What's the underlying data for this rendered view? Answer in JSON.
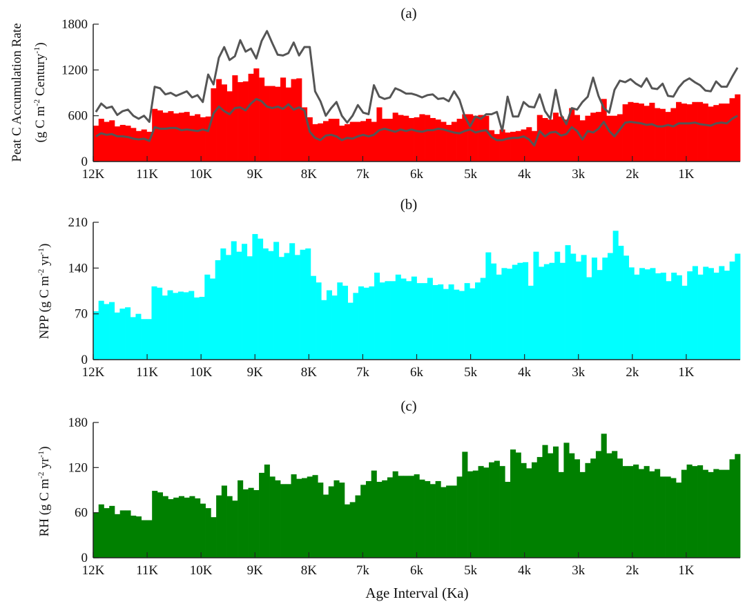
{
  "chart_data": [
    {
      "type": "bar",
      "title": "(a)",
      "ylabel_main": "Peat C Accumulation Rate",
      "ylabel_unit_parts": [
        "(g C m",
        "-2",
        " Century",
        "-1",
        ")"
      ],
      "xlabel": "",
      "xlim": [
        12000,
        0
      ],
      "ylim": [
        0,
        1800
      ],
      "yticks": [
        "0",
        "600",
        "1200",
        "1800"
      ],
      "xticks": [
        "12K",
        "11K",
        "10K",
        "9K",
        "8K",
        "7k",
        "6k",
        "5k",
        "4k",
        "3k",
        "2k",
        "1K"
      ],
      "bar_color": "#ff0000",
      "line_color": "#555555",
      "series": [
        {
          "name": "",
          "kind": "bar",
          "values": [
            470,
            560,
            520,
            540,
            460,
            480,
            470,
            440,
            400,
            420,
            390,
            690,
            670,
            640,
            660,
            630,
            640,
            650,
            600,
            620,
            580,
            590,
            960,
            1080,
            1010,
            920,
            1130,
            1040,
            1050,
            1150,
            1220,
            1100,
            990,
            990,
            980,
            1100,
            970,
            1080,
            1090,
            710,
            580,
            490,
            500,
            530,
            560,
            560,
            470,
            490,
            520,
            520,
            530,
            560,
            520,
            710,
            560,
            560,
            640,
            610,
            600,
            570,
            580,
            620,
            610,
            570,
            550,
            520,
            480,
            520,
            560,
            620,
            620,
            600,
            610,
            600,
            410,
            360,
            420,
            380,
            390,
            400,
            420,
            450,
            400,
            610,
            570,
            550,
            640,
            590,
            550,
            700,
            610,
            540,
            600,
            640,
            650,
            820,
            600,
            600,
            620,
            750,
            780,
            770,
            760,
            730,
            770,
            700,
            690,
            650,
            700,
            780,
            760,
            750,
            780,
            780,
            760,
            720,
            740,
            760,
            760,
            830,
            880
          ]
        },
        {
          "name": "",
          "kind": "line",
          "values": [
            650,
            760,
            700,
            720,
            610,
            660,
            680,
            600,
            560,
            600,
            520,
            980,
            960,
            880,
            900,
            860,
            890,
            920,
            840,
            870,
            780,
            1140,
            1010,
            1360,
            1500,
            1330,
            1380,
            1590,
            1440,
            1480,
            1350,
            1580,
            1710,
            1550,
            1400,
            1390,
            1420,
            1560,
            1390,
            1500,
            1500,
            920,
            790,
            600,
            700,
            780,
            600,
            510,
            600,
            740,
            640,
            620,
            1000,
            850,
            820,
            840,
            960,
            930,
            890,
            890,
            870,
            840,
            870,
            880,
            820,
            830,
            790,
            920,
            810,
            590,
            460,
            590,
            560,
            620,
            620,
            650,
            400,
            850,
            590,
            590,
            780,
            720,
            710,
            880,
            660,
            560,
            940,
            610,
            490,
            700,
            680,
            780,
            850,
            1100,
            860,
            700,
            640,
            940,
            1060,
            1040,
            1080,
            1020,
            980,
            1090,
            960,
            950,
            1020,
            860,
            850,
            970,
            1050,
            1090,
            1040,
            1000,
            930,
            920,
            1050,
            980,
            980,
            1110,
            1230
          ]
        },
        {
          "name": "",
          "kind": "line",
          "values": [
            330,
            370,
            350,
            360,
            330,
            330,
            320,
            300,
            290,
            300,
            270,
            450,
            430,
            430,
            440,
            440,
            410,
            420,
            410,
            400,
            420,
            400,
            630,
            720,
            660,
            620,
            700,
            710,
            670,
            760,
            820,
            790,
            720,
            700,
            720,
            690,
            750,
            680,
            710,
            670,
            390,
            310,
            280,
            340,
            350,
            330,
            280,
            310,
            300,
            330,
            350,
            330,
            350,
            410,
            430,
            410,
            390,
            420,
            400,
            420,
            400,
            390,
            410,
            410,
            430,
            420,
            400,
            380,
            370,
            400,
            420,
            380,
            400,
            410,
            320,
            280,
            280,
            300,
            310,
            310,
            330,
            290,
            210,
            400,
            330,
            380,
            390,
            340,
            360,
            450,
            400,
            290,
            400,
            380,
            430,
            520,
            400,
            330,
            420,
            510,
            520,
            510,
            500,
            480,
            490,
            460,
            460,
            480,
            460,
            500,
            500,
            500,
            510,
            490,
            480,
            470,
            500,
            510,
            500,
            560,
            600
          ]
        }
      ]
    },
    {
      "type": "bar",
      "title": "(b)",
      "ylabel_parts": [
        "NPP (g C m",
        "-2",
        " yr",
        "-1",
        ")"
      ],
      "xlabel": "",
      "xlim": [
        12000,
        0
      ],
      "ylim": [
        0,
        210
      ],
      "yticks": [
        "0",
        "70",
        "140",
        "210"
      ],
      "xticks": [
        "12K",
        "11K",
        "10K",
        "9K",
        "8K",
        "7k",
        "6k",
        "5k",
        "4k",
        "3k",
        "2k",
        "1K"
      ],
      "bar_color": "#00ffff",
      "series": [
        {
          "name": "",
          "kind": "bar",
          "values": [
            74,
            90,
            85,
            88,
            72,
            78,
            80,
            65,
            70,
            62,
            62,
            112,
            110,
            98,
            106,
            102,
            104,
            103,
            105,
            95,
            96,
            130,
            124,
            152,
            170,
            160,
            181,
            165,
            177,
            158,
            192,
            185,
            170,
            166,
            180,
            157,
            163,
            178,
            160,
            168,
            170,
            128,
            118,
            91,
            106,
            98,
            118,
            113,
            87,
            102,
            112,
            110,
            112,
            133,
            118,
            120,
            120,
            130,
            124,
            120,
            127,
            117,
            117,
            125,
            114,
            115,
            108,
            115,
            107,
            105,
            117,
            109,
            118,
            125,
            164,
            147,
            130,
            140,
            139,
            145,
            148,
            149,
            113,
            165,
            142,
            146,
            148,
            165,
            148,
            175,
            162,
            150,
            160,
            126,
            156,
            137,
            156,
            163,
            197,
            174,
            159,
            141,
            130,
            140,
            138,
            140,
            132,
            133,
            120,
            133,
            129,
            113,
            135,
            143,
            130,
            142,
            140,
            133,
            143,
            136,
            150,
            162
          ]
        }
      ]
    },
    {
      "type": "bar",
      "title": "(c)",
      "ylabel_parts": [
        "RH (g C m",
        "-2",
        " yr",
        "-1",
        ")"
      ],
      "xlabel": "Age Interval (Ka)",
      "xlim": [
        12000,
        0
      ],
      "ylim": [
        0,
        180
      ],
      "yticks": [
        "0",
        "60",
        "120",
        "180"
      ],
      "xticks": [
        "12K",
        "11K",
        "10K",
        "9K",
        "8K",
        "7k",
        "6k",
        "5k",
        "4k",
        "3k",
        "2k",
        "1K"
      ],
      "bar_color": "#008000",
      "series": [
        {
          "name": "",
          "kind": "bar",
          "values": [
            60,
            71,
            66,
            69,
            58,
            63,
            63,
            56,
            55,
            50,
            50,
            89,
            87,
            82,
            78,
            80,
            82,
            80,
            82,
            79,
            72,
            66,
            54,
            83,
            96,
            82,
            76,
            103,
            91,
            93,
            90,
            113,
            124,
            108,
            103,
            98,
            98,
            111,
            105,
            106,
            108,
            110,
            100,
            84,
            95,
            103,
            100,
            71,
            74,
            83,
            97,
            102,
            116,
            101,
            103,
            107,
            115,
            109,
            109,
            109,
            111,
            104,
            102,
            98,
            102,
            94,
            96,
            96,
            108,
            141,
            115,
            116,
            122,
            120,
            127,
            129,
            122,
            101,
            144,
            140,
            126,
            119,
            127,
            134,
            150,
            139,
            148,
            114,
            153,
            139,
            131,
            114,
            126,
            132,
            142,
            165,
            139,
            142,
            132,
            122,
            122,
            124,
            118,
            122,
            115,
            118,
            108,
            108,
            106,
            100,
            117,
            124,
            122,
            123,
            117,
            114,
            118,
            117,
            117,
            131,
            138
          ]
        }
      ]
    }
  ]
}
